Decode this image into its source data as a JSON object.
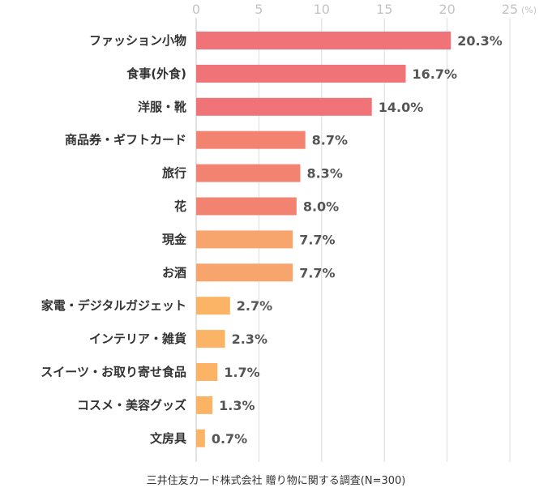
{
  "chart_data": {
    "type": "bar",
    "orientation": "horizontal",
    "unit_label": "(%)",
    "xlim": [
      0,
      25
    ],
    "ticks": [
      0,
      5,
      10,
      15,
      20,
      25
    ],
    "ticks_position": "top",
    "grid": true,
    "categories": [
      "ファッション小物",
      "食事(外食)",
      "洋服・靴",
      "商品券・ギフトカード",
      "旅行",
      "花",
      "現金",
      "お酒",
      "家電・デジタルガジェット",
      "インテリア・雑貨",
      "スイーツ・お取り寄せ食品",
      "コスメ・美容グッズ",
      "文房具"
    ],
    "values": [
      20.3,
      16.7,
      14.0,
      8.7,
      8.3,
      8.0,
      7.7,
      7.7,
      2.7,
      2.3,
      1.7,
      1.3,
      0.7
    ],
    "value_labels": [
      "20.3%",
      "16.7%",
      "14.0%",
      "8.7%",
      "8.3%",
      "8.0%",
      "7.7%",
      "7.7%",
      "2.7%",
      "2.3%",
      "1.7%",
      "1.3%",
      "0.7%"
    ],
    "bar_colors": [
      "#f07377",
      "#f07377",
      "#f07377",
      "#f38371",
      "#f38371",
      "#f38371",
      "#f7a46d",
      "#f7a46d",
      "#fbb466",
      "#fbb466",
      "#fbb466",
      "#fbb466",
      "#fbb466"
    ]
  },
  "footnote": "三井住友カード株式会社 贈り物に関する調査(N=300)"
}
